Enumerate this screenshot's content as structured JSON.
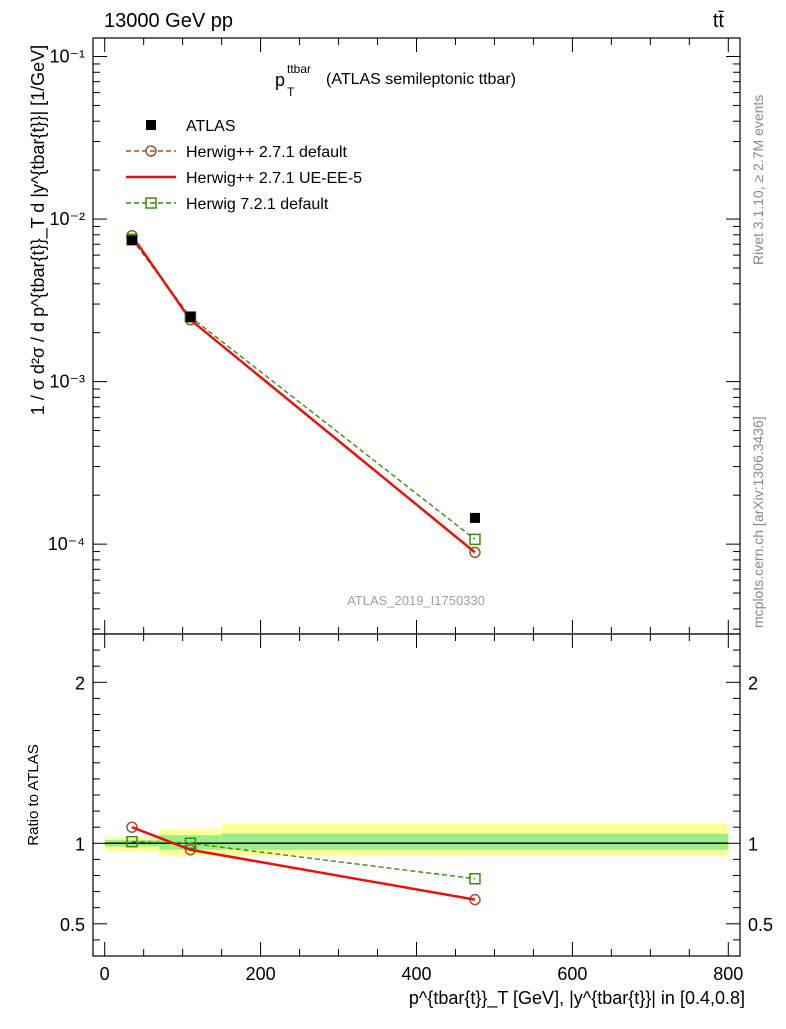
{
  "header": {
    "energy_label": "13000 GeV pp",
    "process_label": "tt̄"
  },
  "side": {
    "rivet_label": "Rivet 3.1.10, ≥ 2.7M events",
    "mcplots_label": "mcplots.cern.ch [arXiv:1306.3436]"
  },
  "chart_data": [
    {
      "type": "line",
      "title": "(ATLAS semileptonic ttbar)",
      "title_main": "p",
      "title_sub": "T",
      "title_sup": "ttbar",
      "watermark": "ATLAS_2019_I1750330",
      "ylabel": "1 / σ d²σ / d p^{tbar{t}}_T d |y^{tbar{t}}| [1/GeV]",
      "yscale": "log",
      "ylim": [
        2.8e-05,
        0.13
      ],
      "xlim": [
        -15,
        815
      ],
      "y_ticks": [
        {
          "value": 0.1,
          "label": "10⁻¹"
        },
        {
          "value": 0.01,
          "label": "10⁻²"
        },
        {
          "value": 0.001,
          "label": "10⁻³"
        },
        {
          "value": 0.0001,
          "label": "10⁻⁴"
        }
      ],
      "legend_position": "top-left",
      "series": [
        {
          "name": "ATLAS",
          "color": "#000000",
          "marker": "filled-square",
          "x": [
            35,
            110,
            475
          ],
          "y": [
            0.0074,
            0.0025,
            0.000145
          ]
        },
        {
          "name": "Herwig++ 2.7.1 default",
          "color": "#a0522d",
          "marker": "open-circle",
          "line": "dashed",
          "x": [
            35,
            110,
            475
          ],
          "y": [
            0.0079,
            0.0024,
            8.9e-05
          ]
        },
        {
          "name": "Herwig++ 2.7.1 UE-EE-5",
          "color": "#e8120c",
          "marker": "none",
          "line": "solid",
          "x": [
            35,
            110,
            475
          ],
          "y": [
            0.0079,
            0.0024,
            8.9e-05
          ]
        },
        {
          "name": "Herwig 7.2.1 default",
          "color": "#3a8c0f",
          "marker": "open-square",
          "line": "dashed",
          "x": [
            35,
            110,
            475
          ],
          "y": [
            0.0075,
            0.0025,
            0.000107
          ]
        }
      ]
    },
    {
      "type": "line",
      "ylabel": "Ratio to ATLAS",
      "ylim": [
        0.3,
        2.3
      ],
      "xlim": [
        -15,
        815
      ],
      "xlabel": "p^{tbar{t}}_T [GeV], |y^{tbar{t}}| in [0.4,0.8]",
      "x_ticks": [
        0,
        200,
        400,
        600,
        800
      ],
      "y_ticks": [
        0.5,
        1,
        2
      ],
      "bands": {
        "edges": [
          0,
          70,
          150,
          800
        ],
        "yellow_low": [
          0.95,
          0.92,
          0.92
        ],
        "yellow_high": [
          1.04,
          1.09,
          1.12
        ],
        "green_low": [
          0.98,
          0.96,
          0.96
        ],
        "green_high": [
          1.02,
          1.05,
          1.06
        ]
      },
      "series": [
        {
          "name": "Herwig++ 2.7.1 default",
          "color": "#a0522d",
          "marker": "open-circle",
          "line": "dashed",
          "x": [
            35,
            110,
            475
          ],
          "y": [
            1.1,
            0.96,
            0.65
          ]
        },
        {
          "name": "Herwig++ 2.7.1 UE-EE-5",
          "color": "#e8120c",
          "marker": "none",
          "line": "solid",
          "x": [
            35,
            110,
            475
          ],
          "y": [
            1.1,
            0.96,
            0.65
          ]
        },
        {
          "name": "Herwig 7.2.1 default",
          "color": "#3a8c0f",
          "marker": "open-square",
          "line": "dashed",
          "x": [
            35,
            110,
            475
          ],
          "y": [
            1.01,
            1.0,
            0.78
          ]
        }
      ]
    }
  ]
}
